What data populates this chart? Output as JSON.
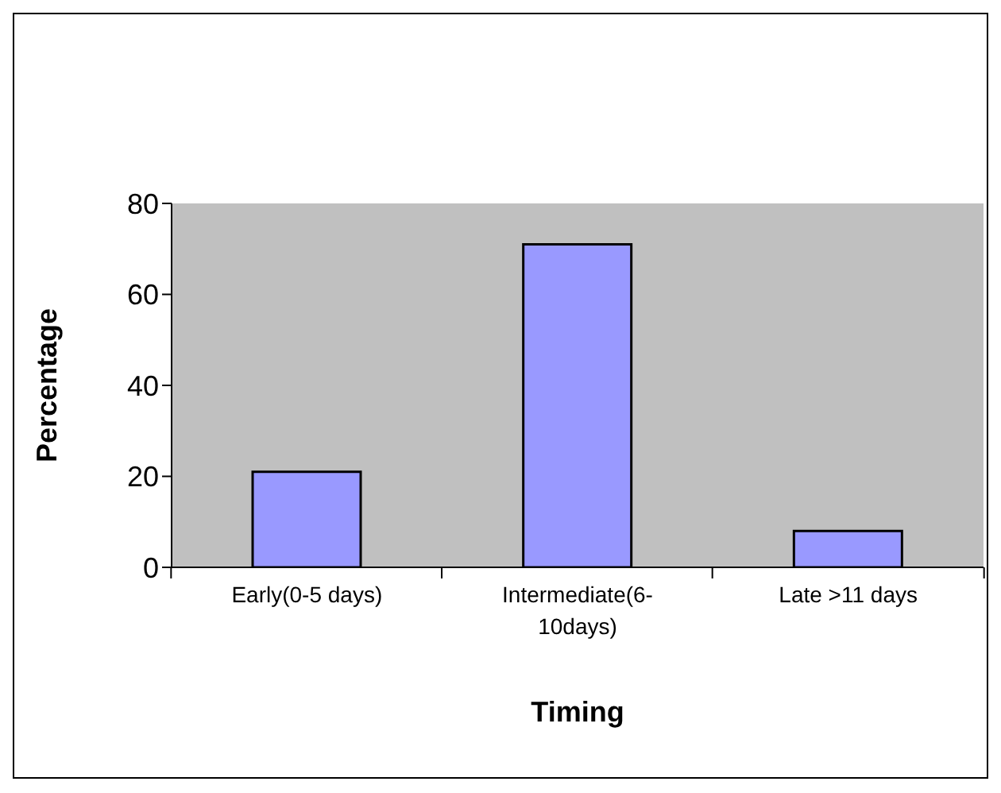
{
  "chart_data": {
    "type": "bar",
    "xlabel": "Timing",
    "ylabel": "Percentage",
    "categories": [
      "Early(0-5 days)",
      "Intermediate(6-10days)",
      "Late >11 days"
    ],
    "values": [
      21,
      71,
      8
    ],
    "color": "#9999ff",
    "ylim": [
      0,
      80
    ],
    "yticks": [
      0,
      20,
      40,
      60,
      80
    ],
    "grid": false,
    "legend": false
  }
}
